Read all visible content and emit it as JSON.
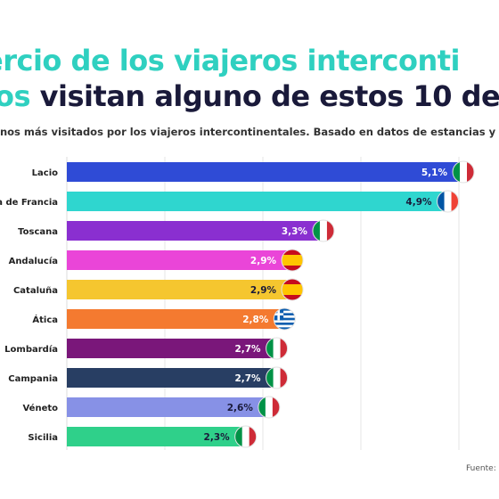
{
  "title": {
    "line1": "ercio de los viajeros interconti",
    "line2_accent": "os",
    "line2_rest": " visitan alguno de estos 10 de"
  },
  "subtitle": "inos más visitados por los viajeros intercontinentales. Basado en datos de estancias y",
  "source": "Fuente:",
  "chart_data": {
    "type": "bar",
    "orientation": "horizontal",
    "categories": [
      "Lacio",
      "a de Francia",
      "Toscana",
      "Andalucía",
      "Cataluña",
      "Ática",
      "Lombardía",
      "Campania",
      "Véneto",
      "Sicilia"
    ],
    "values": [
      5.1,
      4.9,
      3.3,
      2.9,
      2.9,
      2.8,
      2.7,
      2.7,
      2.6,
      2.3
    ],
    "value_labels": [
      "5,1%",
      "4,9%",
      "3,3%",
      "2,9%",
      "2,9%",
      "2,8%",
      "2,7%",
      "2,7%",
      "2,6%",
      "2,3%"
    ],
    "bar_colors": [
      "#2f4bd6",
      "#2fd6cf",
      "#8a2fd0",
      "#ea45d8",
      "#f5c62f",
      "#f47a30",
      "#7a177a",
      "#283e63",
      "#8791e6",
      "#2fd08a"
    ],
    "flags": [
      "italy",
      "france",
      "italy",
      "spain",
      "spain",
      "greece",
      "italy",
      "italy",
      "italy",
      "italy"
    ],
    "xlim": [
      0,
      5.1
    ],
    "grid": true
  }
}
